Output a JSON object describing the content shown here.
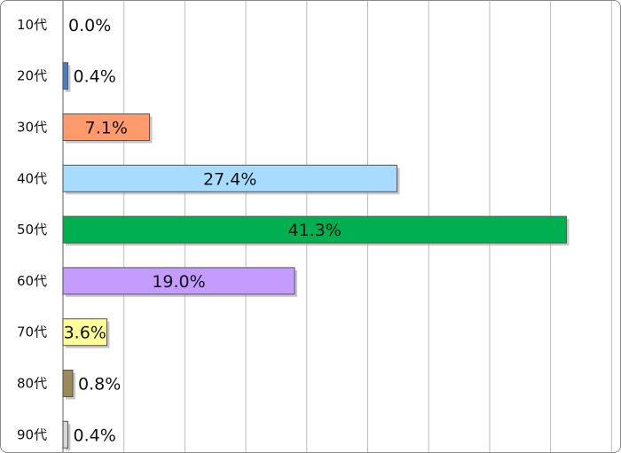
{
  "chart_data": {
    "type": "bar",
    "orientation": "horizontal",
    "categories": [
      "10代",
      "20代",
      "30代",
      "40代",
      "50代",
      "60代",
      "70代",
      "80代",
      "90代"
    ],
    "values": [
      0.0,
      0.4,
      7.1,
      27.4,
      41.3,
      19.0,
      3.6,
      0.8,
      0.4
    ],
    "value_labels": [
      "0.0%",
      "0.4%",
      "7.1%",
      "27.4%",
      "41.3%",
      "19.0%",
      "3.6%",
      "0.8%",
      "0.4%"
    ],
    "colors": [
      "#4a7ec4",
      "#4a7ec4",
      "#ff9a6c",
      "#a8dcff",
      "#00b050",
      "#c49cff",
      "#ffff9a",
      "#9a8a58",
      "#d8d8d8"
    ],
    "xlim": [
      0,
      45
    ],
    "grid": true,
    "title": "",
    "xlabel": "",
    "ylabel": ""
  }
}
